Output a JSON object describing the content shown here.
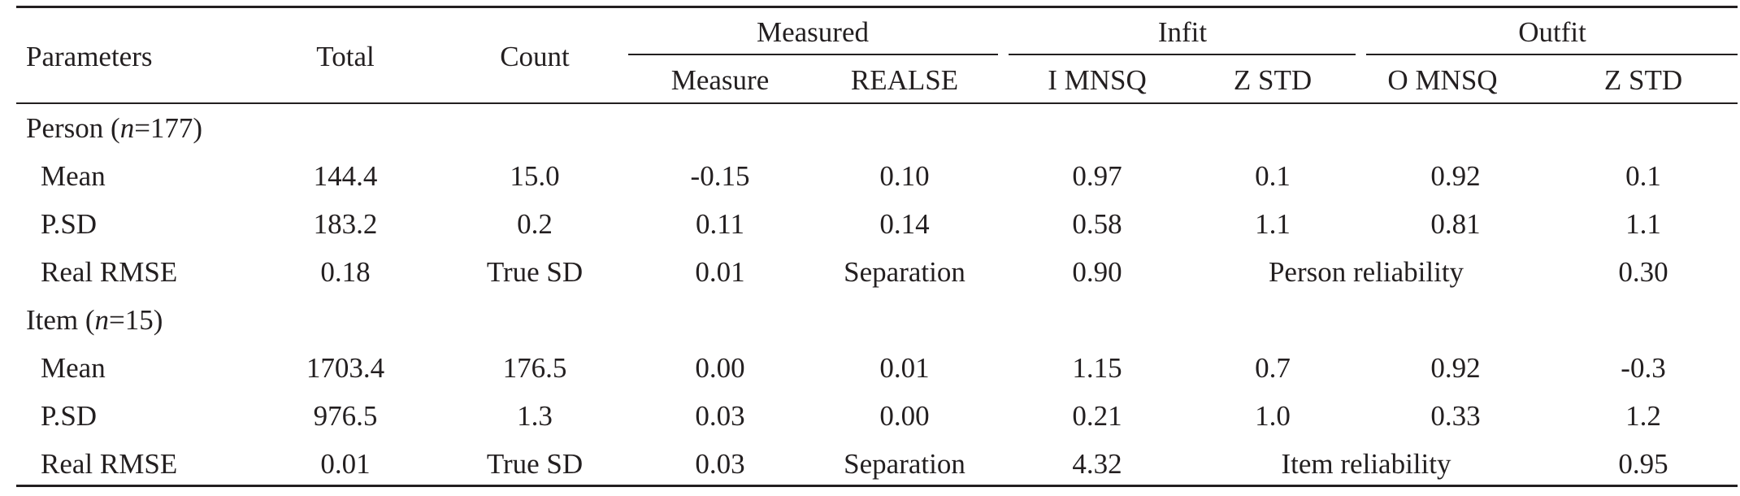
{
  "table": {
    "header": {
      "parameters": "Parameters",
      "total": "Total",
      "count": "Count",
      "groups": {
        "measured": "Measured",
        "infit": "Infit",
        "outfit": "Outfit"
      },
      "sub": {
        "measure": "Measure",
        "realse": "REALSE",
        "i_mnsq": "I MNSQ",
        "infit_zstd": "Z STD",
        "o_mnsq": "O MNSQ",
        "outfit_zstd": "Z STD"
      }
    },
    "person": {
      "label": "Person (",
      "n_var": "n",
      "n_value": "=177)",
      "rows": [
        [
          "Mean",
          "144.4",
          "15.0",
          "-0.15",
          "0.10",
          "0.97",
          "0.1",
          "0.92",
          "0.1"
        ],
        [
          "P.SD",
          "183.2",
          "0.2",
          "0.11",
          "0.14",
          "0.58",
          "1.1",
          "0.81",
          "1.1"
        ]
      ],
      "rmse_row": {
        "label": "Real RMSE",
        "rmse": "0.18",
        "true_sd_label": "True SD",
        "true_sd": "0.01",
        "separation_label": "Separation",
        "separation": "0.90",
        "reliability_label": "Person reliability",
        "reliability": "0.30"
      }
    },
    "item": {
      "label": "Item (",
      "n_var": "n",
      "n_value": "=15)",
      "rows": [
        [
          "Mean",
          "1703.4",
          "176.5",
          "0.00",
          "0.01",
          "1.15",
          "0.7",
          "0.92",
          "-0.3"
        ],
        [
          "P.SD",
          "976.5",
          "1.3",
          "0.03",
          "0.00",
          "0.21",
          "1.0",
          "0.33",
          "1.2"
        ]
      ],
      "rmse_row": {
        "label": "Real RMSE",
        "rmse": "0.01",
        "true_sd_label": "True SD",
        "true_sd": "0.03",
        "separation_label": "Separation",
        "separation": "4.32",
        "reliability_label": "Item reliability",
        "reliability": "0.95"
      }
    }
  }
}
